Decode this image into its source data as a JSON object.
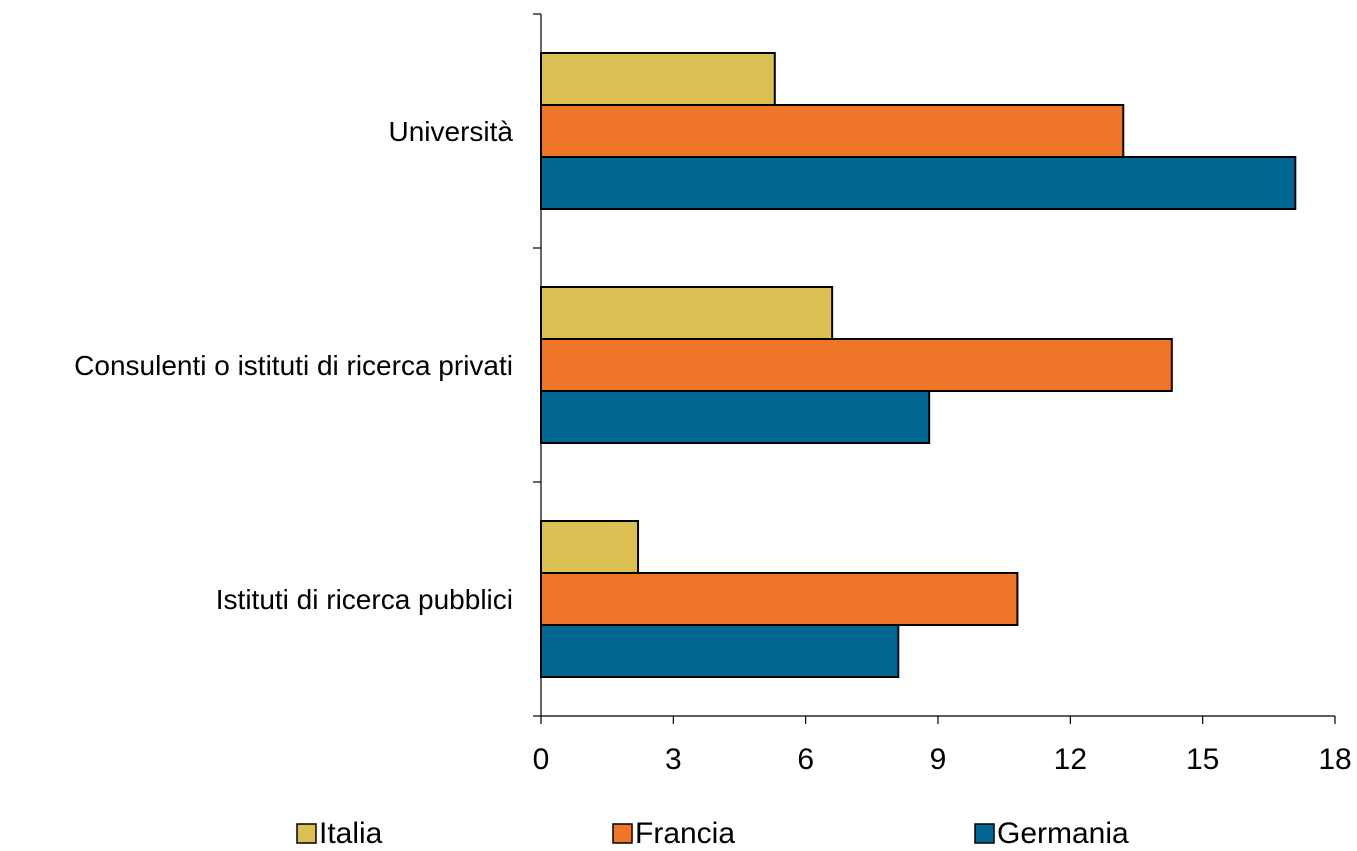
{
  "chart_data": {
    "type": "bar",
    "orientation": "horizontal",
    "categories": [
      "Università",
      "Consulenti o istituti di ricerca privati",
      "Istituti di ricerca pubblici"
    ],
    "series": [
      {
        "name": "Italia",
        "values": [
          5.3,
          6.6,
          2.2
        ],
        "color": "#DCBF52"
      },
      {
        "name": "Francia",
        "values": [
          13.2,
          14.3,
          10.8
        ],
        "color": "#EF7628"
      },
      {
        "name": "Germania",
        "values": [
          17.1,
          8.8,
          8.1
        ],
        "color": "#006892"
      }
    ],
    "xlim": [
      0,
      18
    ],
    "xticks": [
      "0",
      "3",
      "6",
      "9",
      "12",
      "15",
      "18"
    ],
    "grid": false,
    "legend_position": "bottom"
  }
}
